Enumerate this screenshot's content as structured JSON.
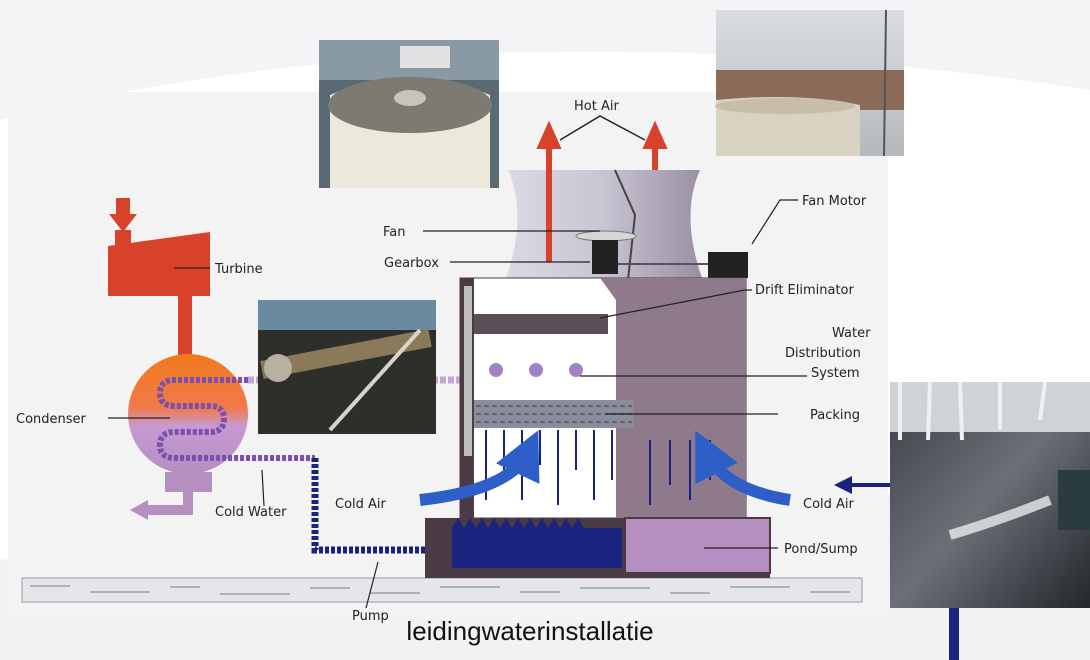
{
  "labels": {
    "hot_air": "Hot Air",
    "fan": "Fan",
    "fan_motor": "Fan Motor",
    "gearbox": "Gearbox",
    "turbine": "Turbine",
    "drift_eliminator": "Drift Eliminator",
    "water_distribution_1": "Water",
    "water_distribution_2": "Distribution",
    "water_distribution_3": "System",
    "packing": "Packing",
    "condenser": "Condenser",
    "cold_air_left": "Cold Air",
    "cold_air_right": "Cold Air",
    "cold_water": "Cold Water",
    "pond_sump": "Pond/Sump",
    "pump": "Pump"
  },
  "caption": "leidingwaterinstallatie",
  "colors": {
    "steam_red": "#d8412a",
    "water_blue": "#1a237e",
    "pipe_lilac": "#b48fc0",
    "tower_gray": "#c8c6cc",
    "arrow_blue": "#2e5fc8"
  },
  "photos": [
    "cooling-tower-fan-photo",
    "rooftop-tower-photo",
    "spray-nozzle-photo",
    "basin-spray-photo"
  ]
}
